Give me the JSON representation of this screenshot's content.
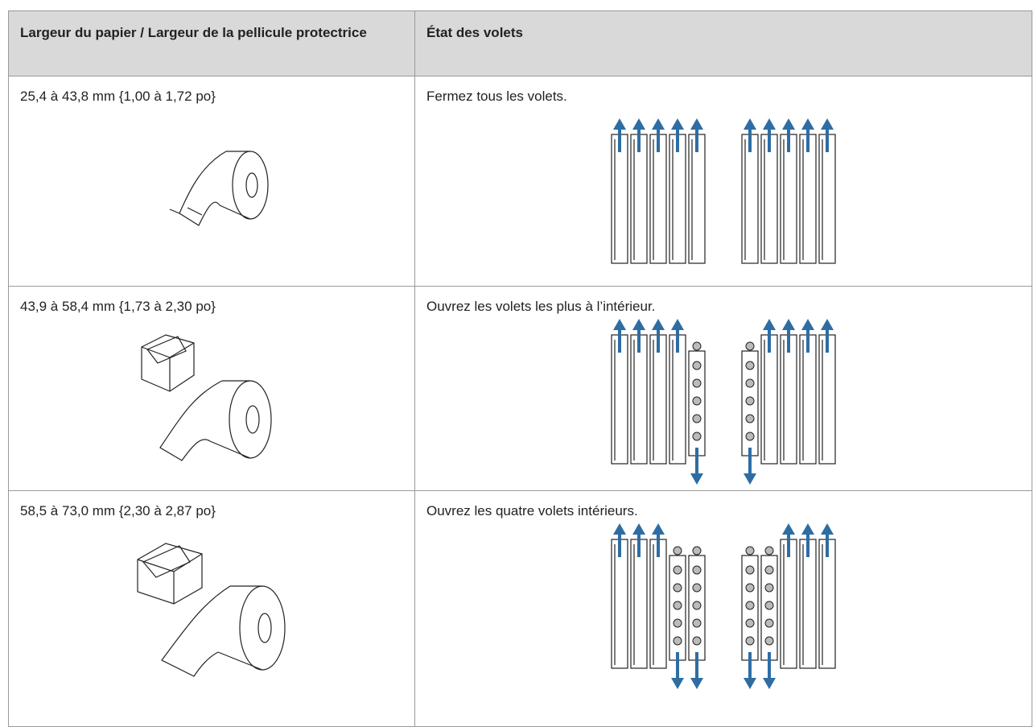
{
  "table": {
    "header": [
      "Largeur du papier / Largeur de la pellicule protectrice",
      "État des volets"
    ],
    "rows": [
      [
        "25,4 à 43,8 mm {1,00 à 1,72 po}",
        "Fermez tous les volets."
      ],
      [
        "43,9 à 58,4 mm {1,73 à 2,30 po}",
        "Ouvrez les volets les plus à l’intérieur."
      ],
      [
        "58,5 à 73,0 mm {2,30 à 2,87 po}",
        "Ouvrez les quatre volets intérieurs."
      ]
    ]
  }
}
